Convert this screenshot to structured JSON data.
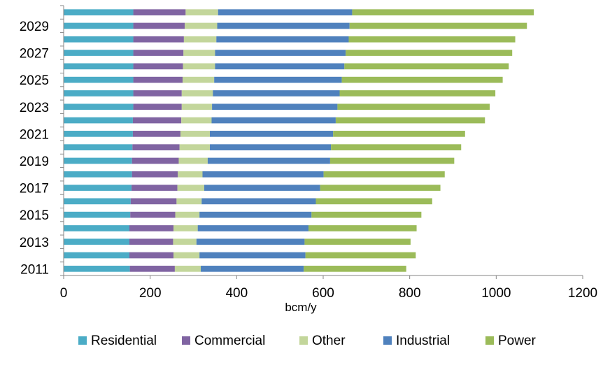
{
  "chart_data": {
    "type": "bar",
    "orientation": "horizontal",
    "stacked": true,
    "categories": [
      "2011",
      "2012",
      "2013",
      "2014",
      "2015",
      "2016",
      "2017",
      "2018",
      "2019",
      "2020",
      "2021",
      "2022",
      "2023",
      "2024",
      "2025",
      "2026",
      "2027",
      "2028",
      "2029",
      "2030"
    ],
    "y_tick_labels": [
      "2011",
      "2013",
      "2015",
      "2017",
      "2019",
      "2021",
      "2023",
      "2025",
      "2027",
      "2029"
    ],
    "series": [
      {
        "name": "Residential",
        "color": "#4bacc6",
        "values": [
          153,
          152,
          152,
          152,
          154,
          155,
          157,
          158,
          158,
          159,
          160,
          160,
          161,
          161,
          161,
          161,
          161,
          161,
          161,
          161
        ]
      },
      {
        "name": "Commercial",
        "color": "#8064a2",
        "values": [
          104,
          102,
          101,
          102,
          104,
          106,
          106,
          106,
          108,
          109,
          110,
          112,
          112,
          112,
          114,
          115,
          116,
          117,
          119,
          121
        ]
      },
      {
        "name": "Other",
        "color": "#c3d69b",
        "values": [
          60,
          60,
          54,
          56,
          56,
          58,
          62,
          57,
          67,
          70,
          68,
          70,
          70,
          72,
          73,
          74,
          73,
          75,
          75,
          75
        ]
      },
      {
        "name": "Industrial",
        "color": "#4f81bd",
        "values": [
          238,
          245,
          250,
          256,
          259,
          264,
          268,
          280,
          283,
          280,
          285,
          287,
          290,
          293,
          295,
          299,
          302,
          306,
          306,
          310
        ]
      },
      {
        "name": "Power",
        "color": "#9bbb59",
        "values": [
          237,
          255,
          245,
          250,
          254,
          269,
          278,
          280,
          287,
          301,
          305,
          345,
          352,
          360,
          372,
          380,
          385,
          385,
          410,
          420
        ]
      }
    ],
    "xlabel": "bcm/y",
    "ylabel": "",
    "xlim": [
      0,
      1200
    ],
    "x_ticks": [
      0,
      200,
      400,
      600,
      800,
      1000,
      1200
    ],
    "grid": false,
    "legend_position": "bottom"
  }
}
